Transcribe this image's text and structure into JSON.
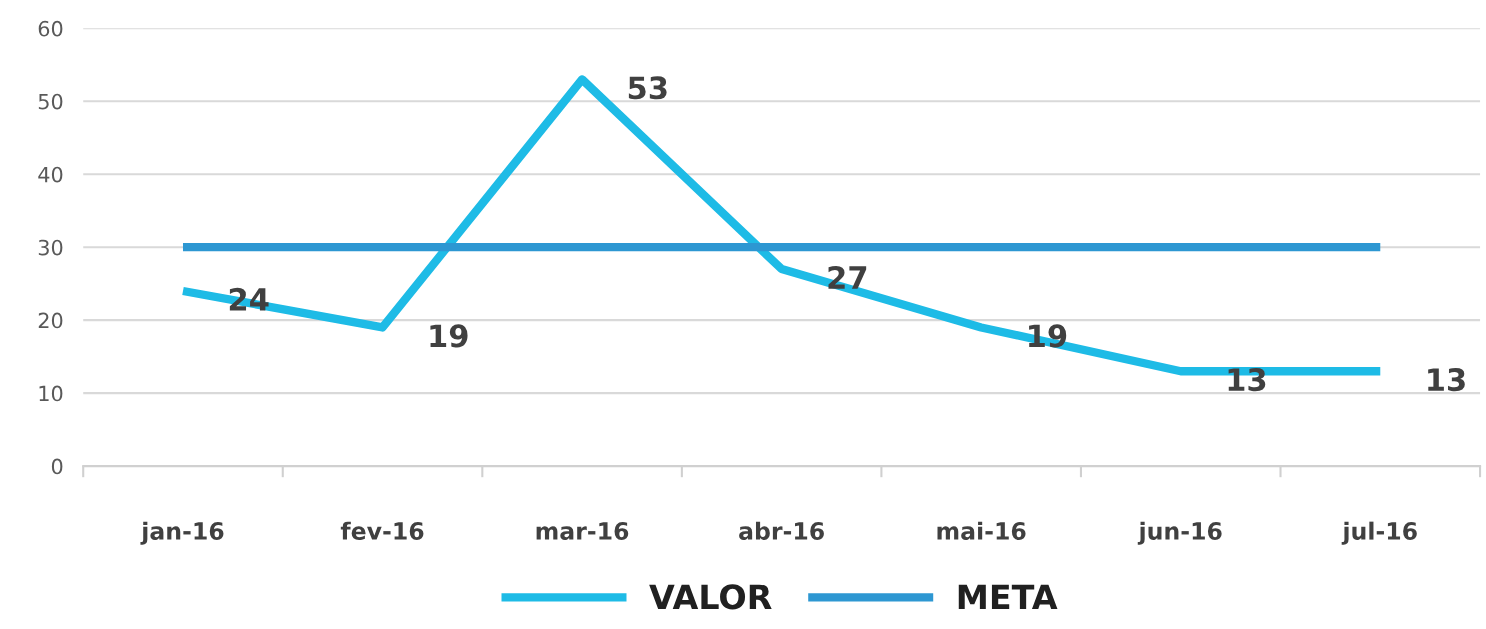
{
  "chart_data": {
    "type": "line",
    "categories": [
      "jan-16",
      "fev-16",
      "mar-16",
      "abr-16",
      "mai-16",
      "jun-16",
      "jul-16"
    ],
    "series": [
      {
        "name": "VALOR",
        "color": "#1ebbe6",
        "values": [
          24,
          19,
          53,
          27,
          19,
          13,
          13
        ],
        "value_labels": [
          "24",
          "19",
          "53",
          "27",
          "19",
          "13",
          "13"
        ]
      },
      {
        "name": "META",
        "color": "#2d97d2",
        "values": [
          30,
          30,
          30,
          30,
          30,
          30,
          30
        ]
      }
    ],
    "ylim": [
      0,
      60
    ],
    "yticks": [
      0,
      10,
      20,
      30,
      40,
      50,
      60
    ],
    "grid": "y",
    "legend": "bottom",
    "marker": "none",
    "line_style": "solid"
  }
}
